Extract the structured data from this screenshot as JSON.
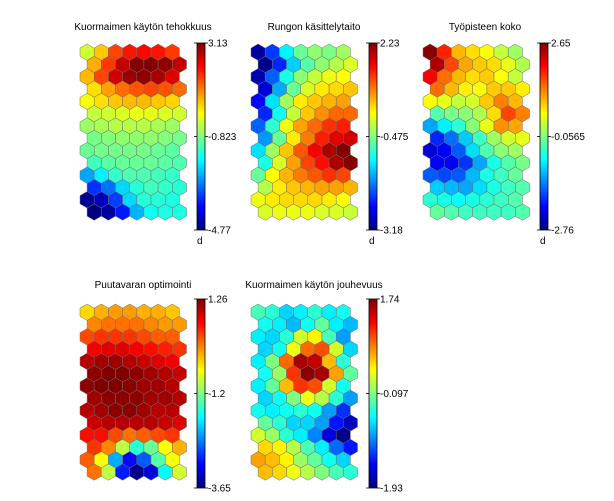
{
  "chart_data": [
    {
      "type": "heatmap",
      "title": "Kuormaimen käytön tehokkuus",
      "colorbar": {
        "max_label": "3.13",
        "mid_label": "-0.823",
        "min_label": "-4.77",
        "unit": "d",
        "range": [
          -4.77,
          3.13
        ]
      },
      "grid": {
        "rows": 14,
        "cols": 7
      },
      "values": [
        [
          -0.2,
          0.6,
          1.6,
          2.0,
          2.1,
          2.0,
          1.7
        ],
        [
          0.8,
          1.7,
          2.6,
          3.1,
          3.1,
          3.0,
          2.6
        ],
        [
          0.7,
          1.6,
          2.5,
          2.9,
          3.0,
          2.8,
          2.4
        ],
        [
          0.4,
          0.9,
          1.3,
          1.5,
          1.6,
          1.5,
          1.3
        ],
        [
          0.1,
          0.4,
          0.6,
          0.7,
          0.7,
          0.6,
          0.5
        ],
        [
          -0.3,
          -0.2,
          -0.1,
          0.0,
          0.0,
          -0.1,
          -0.2
        ],
        [
          -0.6,
          -0.5,
          -0.4,
          -0.4,
          -0.4,
          -0.5,
          -0.6
        ],
        [
          -0.9,
          -0.8,
          -0.7,
          -0.7,
          -0.7,
          -0.8,
          -0.9
        ],
        [
          -1.0,
          -0.9,
          -0.9,
          -0.9,
          -0.9,
          -1.0,
          -1.1
        ],
        [
          -1.3,
          -1.1,
          -1.0,
          -1.0,
          -1.0,
          -1.1,
          -1.2
        ],
        [
          -2.5,
          -1.9,
          -1.4,
          -1.2,
          -1.2,
          -1.3,
          -1.4
        ],
        [
          -3.4,
          -2.9,
          -2.1,
          -1.5,
          -1.3,
          -1.4,
          -1.5
        ],
        [
          -4.6,
          -4.3,
          -3.3,
          -2.1,
          -1.5,
          -1.5,
          -1.6
        ],
        [
          -4.8,
          -4.5,
          -3.6,
          -2.4,
          -1.7,
          -1.6,
          -1.6
        ]
      ]
    },
    {
      "type": "heatmap",
      "title": "Rungon käsittelytaito",
      "colorbar": {
        "max_label": "2.23",
        "mid_label": "-0.475",
        "min_label": "-3.18",
        "unit": "d",
        "range": [
          -3.18,
          2.23
        ]
      },
      "grid": {
        "rows": 14,
        "cols": 7
      },
      "values": [
        [
          -3.0,
          -2.2,
          -1.2,
          -0.6,
          -0.4,
          -0.5,
          -0.3
        ],
        [
          -3.1,
          -2.3,
          -1.4,
          -0.7,
          -0.4,
          -0.2,
          0.0
        ],
        [
          -2.9,
          -2.0,
          -1.0,
          -0.4,
          -0.1,
          0.1,
          0.2
        ],
        [
          -2.7,
          -1.6,
          -0.6,
          0.0,
          0.3,
          0.4,
          0.5
        ],
        [
          -2.5,
          -1.3,
          -0.3,
          0.3,
          0.5,
          0.6,
          0.7
        ],
        [
          -2.3,
          -1.1,
          -0.1,
          0.5,
          0.8,
          1.0,
          1.0
        ],
        [
          -2.0,
          -0.9,
          0.1,
          0.7,
          1.0,
          1.3,
          1.4
        ],
        [
          -1.7,
          -0.6,
          0.3,
          0.9,
          1.4,
          1.7,
          1.8
        ],
        [
          -1.3,
          -0.3,
          0.5,
          1.1,
          1.6,
          2.0,
          2.2
        ],
        [
          -1.0,
          0.0,
          0.7,
          1.2,
          1.5,
          2.0,
          2.2
        ],
        [
          -0.6,
          0.2,
          0.6,
          0.9,
          1.1,
          1.3,
          1.2
        ],
        [
          -0.2,
          0.3,
          0.5,
          0.6,
          0.7,
          0.7,
          0.6
        ],
        [
          0.1,
          0.3,
          0.4,
          0.4,
          0.4,
          0.3,
          0.2
        ],
        [
          0.0,
          0.1,
          0.1,
          0.1,
          0.0,
          0.0,
          -0.1
        ]
      ]
    },
    {
      "type": "heatmap",
      "title": "Työpisteen koko",
      "colorbar": {
        "max_label": "2.65",
        "mid_label": "-0.0565",
        "min_label": "-2.76",
        "unit": "d",
        "range": [
          -2.76,
          2.65
        ]
      },
      "grid": {
        "rows": 14,
        "cols": 7
      },
      "values": [
        [
          2.6,
          1.8,
          1.0,
          0.8,
          0.6,
          0.3,
          0.1
        ],
        [
          2.4,
          1.6,
          1.1,
          0.9,
          0.8,
          0.5,
          0.2
        ],
        [
          2.0,
          1.4,
          1.0,
          0.8,
          0.9,
          0.6,
          0.3
        ],
        [
          1.4,
          1.0,
          0.7,
          0.6,
          0.9,
          0.9,
          0.7
        ],
        [
          0.6,
          0.5,
          0.3,
          0.4,
          0.9,
          1.3,
          1.0
        ],
        [
          -0.3,
          -0.1,
          0.0,
          0.2,
          0.8,
          1.6,
          1.3
        ],
        [
          -1.2,
          -0.8,
          -0.5,
          0.0,
          0.5,
          1.2,
          1.1
        ],
        [
          -1.9,
          -1.5,
          -1.0,
          -0.4,
          0.1,
          0.4,
          0.5
        ],
        [
          -2.3,
          -2.1,
          -1.6,
          -0.9,
          -0.3,
          0.0,
          0.1
        ],
        [
          -2.1,
          -2.1,
          -1.8,
          -1.2,
          -0.6,
          -0.3,
          -0.1
        ],
        [
          -1.6,
          -1.7,
          -1.6,
          -1.1,
          -0.6,
          -0.4,
          -0.2
        ],
        [
          -1.0,
          -1.1,
          -1.2,
          -0.9,
          -0.6,
          -0.4,
          -0.3
        ],
        [
          -0.5,
          -0.6,
          -0.7,
          -0.6,
          -0.5,
          -0.4,
          -0.3
        ],
        [
          -0.2,
          -0.3,
          -0.4,
          -0.4,
          -0.4,
          -0.4,
          -0.3
        ]
      ]
    },
    {
      "type": "heatmap",
      "title": "Puutavaran optimointi",
      "colorbar": {
        "max_label": "1.26",
        "mid_label": "-1.2",
        "min_label": "-3.65",
        "unit": "",
        "range": [
          -3.65,
          1.26
        ]
      },
      "grid": {
        "rows": 14,
        "cols": 7
      },
      "values": [
        [
          -0.4,
          -0.2,
          -0.1,
          -0.1,
          -0.2,
          -0.2,
          -0.3
        ],
        [
          0.0,
          0.1,
          0.1,
          0.1,
          0.0,
          -0.1,
          -0.1
        ],
        [
          0.3,
          0.4,
          0.4,
          0.4,
          0.3,
          0.2,
          0.2
        ],
        [
          0.7,
          0.8,
          0.8,
          0.7,
          0.6,
          0.5,
          0.4
        ],
        [
          1.0,
          1.1,
          1.1,
          1.0,
          0.9,
          0.8,
          0.7
        ],
        [
          1.2,
          1.3,
          1.3,
          1.2,
          1.1,
          1.0,
          0.9
        ],
        [
          1.2,
          1.3,
          1.3,
          1.2,
          1.1,
          1.1,
          1.0
        ],
        [
          1.1,
          1.2,
          1.2,
          1.2,
          1.1,
          1.1,
          1.0
        ],
        [
          1.0,
          1.1,
          1.2,
          1.2,
          1.1,
          1.0,
          1.0
        ],
        [
          0.9,
          1.0,
          1.0,
          1.0,
          1.0,
          0.9,
          0.8
        ],
        [
          0.6,
          0.6,
          0.3,
          0.1,
          0.2,
          0.3,
          0.4
        ],
        [
          0.4,
          0.0,
          -0.9,
          -1.6,
          -1.3,
          -0.6,
          -0.2
        ],
        [
          0.2,
          -0.6,
          -2.2,
          -3.0,
          -2.6,
          -1.4,
          -0.6
        ],
        [
          0.1,
          -0.9,
          -2.9,
          -3.6,
          -3.2,
          -1.8,
          -0.8
        ]
      ]
    },
    {
      "type": "heatmap",
      "title": "Kuormaimen käytön jouhevuus",
      "colorbar": {
        "max_label": "1.74",
        "mid_label": "-0.097",
        "min_label": "-1.93",
        "unit": "",
        "range": [
          -1.93,
          1.74
        ]
      },
      "grid": {
        "rows": 14,
        "cols": 7
      },
      "values": [
        [
          -0.3,
          -0.4,
          -0.7,
          -0.6,
          -0.4,
          -0.6,
          -0.5
        ],
        [
          -0.5,
          -0.6,
          -0.8,
          -0.5,
          -0.2,
          -0.6,
          -0.8
        ],
        [
          -0.6,
          -0.7,
          -0.4,
          0.2,
          0.4,
          -0.3,
          -0.9
        ],
        [
          -0.7,
          -0.5,
          0.3,
          0.9,
          1.0,
          0.2,
          -0.7
        ],
        [
          -0.6,
          -0.1,
          0.9,
          1.6,
          1.5,
          0.6,
          -0.4
        ],
        [
          -0.5,
          0.0,
          1.1,
          1.7,
          1.6,
          0.7,
          -0.2
        ],
        [
          -0.6,
          -0.2,
          0.6,
          1.1,
          1.0,
          0.2,
          -0.5
        ],
        [
          -0.7,
          -0.5,
          -0.1,
          0.3,
          0.1,
          -0.4,
          -0.9
        ],
        [
          -0.5,
          -0.6,
          -0.5,
          -0.4,
          -0.5,
          -0.9,
          -1.3
        ],
        [
          -0.2,
          -0.4,
          -0.7,
          -0.7,
          -0.9,
          -1.4,
          -1.7
        ],
        [
          0.2,
          0.0,
          -0.4,
          -0.6,
          -1.0,
          -1.6,
          -1.9
        ],
        [
          0.5,
          0.4,
          0.1,
          -0.3,
          -0.6,
          -1.1,
          -1.4
        ],
        [
          0.7,
          0.6,
          0.4,
          0.0,
          -0.2,
          -0.5,
          -0.7
        ],
        [
          0.6,
          0.5,
          0.3,
          0.1,
          -0.1,
          -0.3,
          -0.4
        ]
      ]
    }
  ]
}
